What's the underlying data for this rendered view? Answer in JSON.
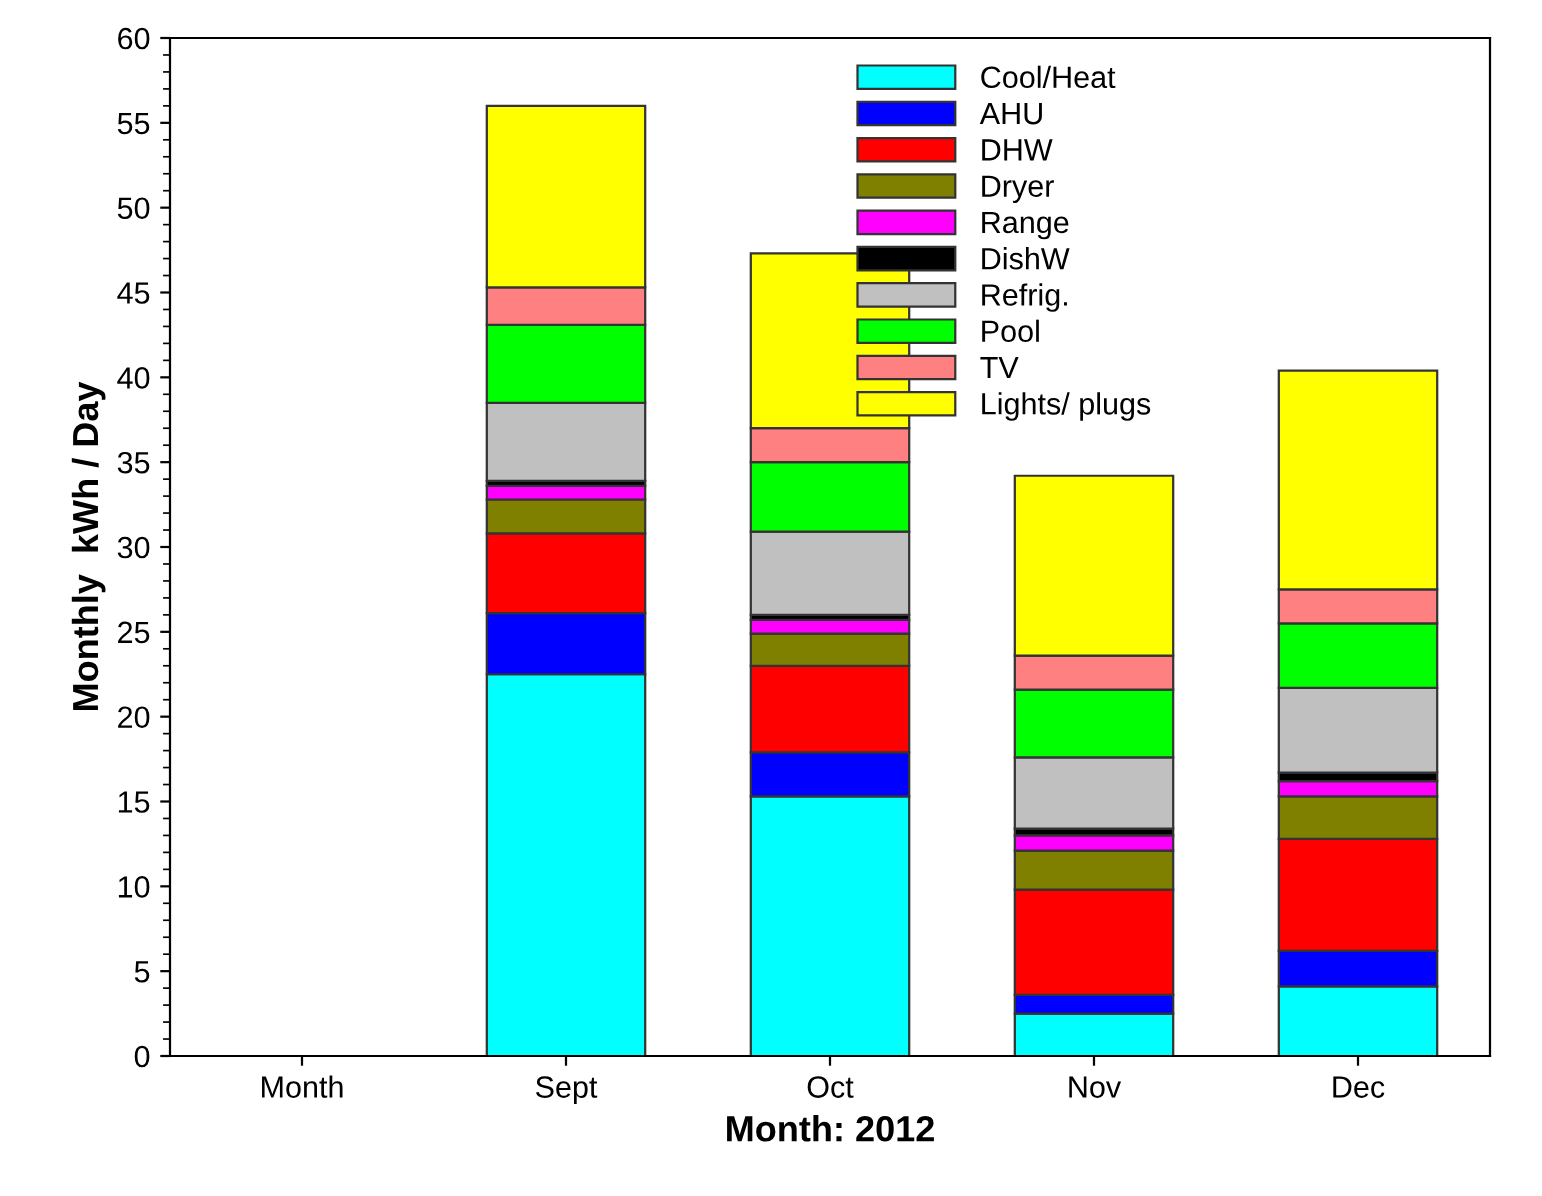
{
  "chart_data": {
    "type": "bar",
    "stacked": true,
    "xlabel": "Month: 2012",
    "ylabel": "Monthly  kWh / Day",
    "categories": [
      "Month",
      "Sept",
      "Oct",
      "Nov",
      "Dec"
    ],
    "ylim": [
      0,
      60
    ],
    "yticks": [
      0,
      5,
      10,
      15,
      20,
      25,
      30,
      35,
      40,
      45,
      50,
      55,
      60
    ],
    "grid": false,
    "legend": "top",
    "series": [
      {
        "name": "Cool/Heat",
        "color": "#00ffff",
        "values": [
          null,
          22.5,
          15.3,
          2.5,
          4.1
        ]
      },
      {
        "name": "AHU",
        "color": "#0000ff",
        "values": [
          null,
          3.6,
          2.6,
          1.1,
          2.1
        ]
      },
      {
        "name": "DHW",
        "color": "#ff0000",
        "values": [
          null,
          4.7,
          5.1,
          6.2,
          6.6
        ]
      },
      {
        "name": "Dryer",
        "color": "#808000",
        "values": [
          null,
          2.0,
          1.9,
          2.3,
          2.5
        ]
      },
      {
        "name": "Range",
        "color": "#ff00ff",
        "values": [
          null,
          0.8,
          0.8,
          0.9,
          0.9
        ]
      },
      {
        "name": "DishW",
        "color": "#000000",
        "values": [
          null,
          0.3,
          0.3,
          0.4,
          0.5
        ]
      },
      {
        "name": "Refrig.",
        "color": "#c0c0c0",
        "values": [
          null,
          4.6,
          4.9,
          4.2,
          5.0
        ]
      },
      {
        "name": "Pool",
        "color": "#00ff00",
        "values": [
          null,
          4.6,
          4.1,
          4.0,
          3.8
        ]
      },
      {
        "name": "TV",
        "color": "#ff8080",
        "values": [
          null,
          2.2,
          2.0,
          2.0,
          2.0
        ]
      },
      {
        "name": "Lights/ plugs",
        "color": "#ffff00",
        "values": [
          null,
          10.7,
          10.3,
          10.6,
          12.9
        ]
      }
    ]
  }
}
